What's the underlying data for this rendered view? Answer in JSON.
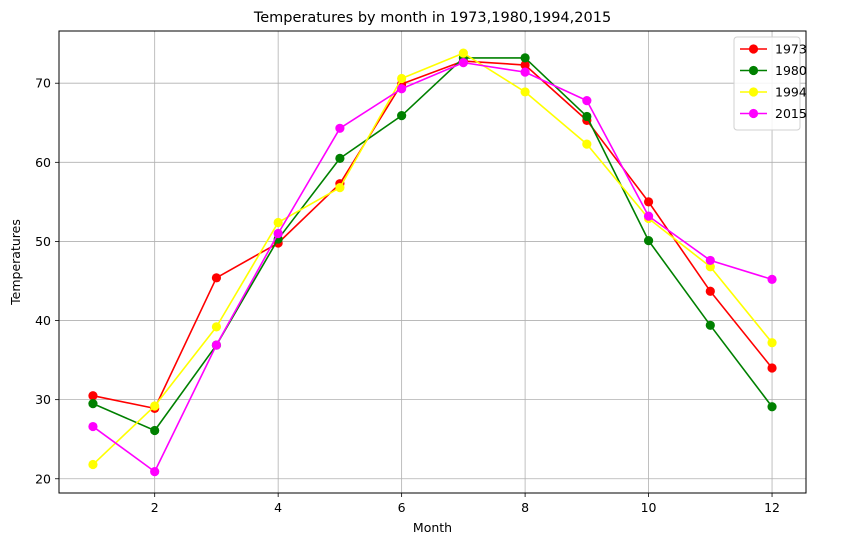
{
  "chart_data": {
    "type": "line",
    "title": "Temperatures by month in 1973,1980,1994,2015",
    "xlabel": "Month",
    "ylabel": "Temperatures",
    "x": [
      1,
      2,
      3,
      4,
      5,
      6,
      7,
      8,
      9,
      10,
      11,
      12
    ],
    "xlim": [
      0.45,
      12.55
    ],
    "ylim": [
      18.2,
      76.6
    ],
    "xticks": [
      2,
      4,
      6,
      8,
      10,
      12
    ],
    "yticks": [
      20,
      30,
      40,
      50,
      60,
      70
    ],
    "grid": true,
    "legend_position": "top-right",
    "series": [
      {
        "name": "1973",
        "color": "#ff0000",
        "values": [
          30.5,
          28.9,
          45.4,
          49.8,
          57.3,
          69.9,
          72.8,
          72.3,
          65.3,
          55.0,
          43.7,
          34.0
        ]
      },
      {
        "name": "1980",
        "color": "#008000",
        "values": [
          29.5,
          26.1,
          36.9,
          50.3,
          60.5,
          65.9,
          73.2,
          73.2,
          65.8,
          50.1,
          39.4,
          29.1
        ]
      },
      {
        "name": "1994",
        "color": "#ffff00",
        "values": [
          21.8,
          29.2,
          39.2,
          52.4,
          56.8,
          70.6,
          73.8,
          68.9,
          62.3,
          52.9,
          46.8,
          37.2
        ]
      },
      {
        "name": "2015",
        "color": "#ff00ff",
        "values": [
          26.6,
          20.9,
          36.9,
          51.0,
          64.3,
          69.3,
          72.6,
          71.4,
          67.8,
          53.2,
          47.6,
          45.2
        ]
      }
    ]
  }
}
